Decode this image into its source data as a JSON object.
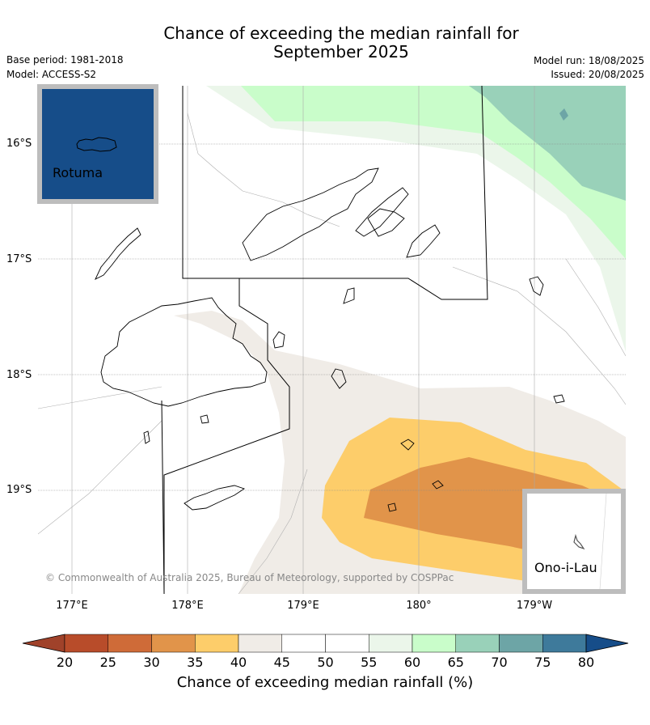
{
  "title": {
    "line1": "Chance of exceeding the median rainfall for",
    "line2": "September 2025"
  },
  "meta": {
    "base_period": "Base period: 1981-2018",
    "model": "Model: ACCESS-S2",
    "model_run": "Model run: 18/08/2025",
    "issued": "Issued: 20/08/2025"
  },
  "latitudes": [
    "16°S",
    "17°S",
    "18°S",
    "19°S"
  ],
  "longitudes": [
    "177°E",
    "178°E",
    "179°E",
    "180°",
    "179°W"
  ],
  "insets": {
    "rotuma": "Rotuma",
    "ono_i_lau": "Ono-i-Lau"
  },
  "copyright": "© Commonwealth of Australia 2025, Bureau of Meteorology, supported by COSPPac",
  "colorbar": {
    "ticks": [
      "20",
      "25",
      "30",
      "35",
      "40",
      "45",
      "50",
      "55",
      "60",
      "65",
      "70",
      "75",
      "80"
    ],
    "label": "Chance of exceeding median rainfall (%)",
    "colors": [
      "#a0422a",
      "#b84c2a",
      "#cf6b38",
      "#e1944a",
      "#fdcd6a",
      "#f0ece7",
      "#ffffff",
      "#ffffff",
      "#ebf6ea",
      "#c9fdca",
      "#99d1b9",
      "#6da5a6",
      "#3e7a9b",
      "#164d89"
    ]
  }
}
